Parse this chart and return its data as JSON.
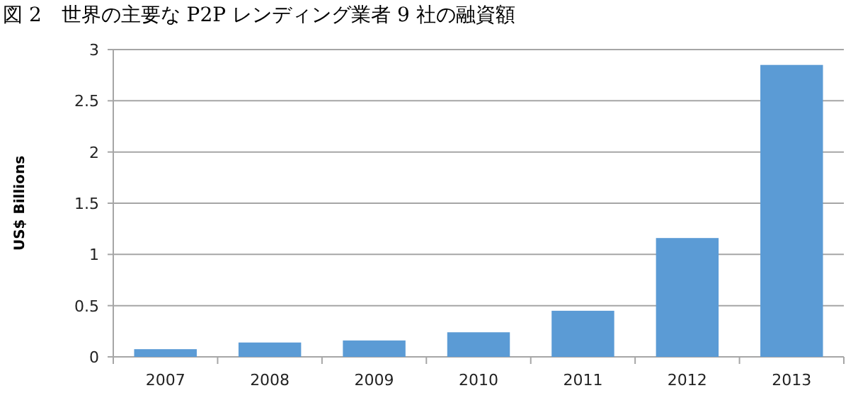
{
  "chart_data": {
    "type": "bar",
    "title": "図 2　世界の主要な P2P レンディング業者 9 社の融資額",
    "ylabel": "US$ Billions",
    "categories": [
      "2007",
      "2008",
      "2009",
      "2010",
      "2011",
      "2012",
      "2013"
    ],
    "values": [
      0.075,
      0.14,
      0.16,
      0.24,
      0.45,
      1.16,
      2.85
    ],
    "color": "#5b9bd5",
    "ylim": [
      0,
      3
    ],
    "yticks": [
      0,
      0.5,
      1,
      1.5,
      2,
      2.5,
      3
    ],
    "grid": "y"
  }
}
